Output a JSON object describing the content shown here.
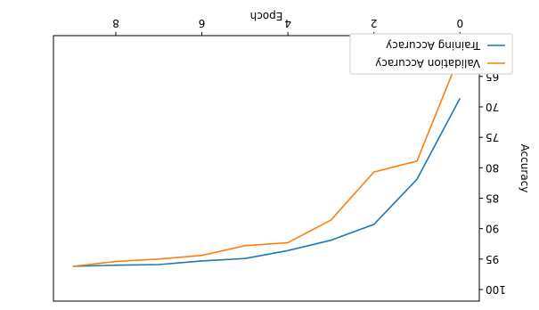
{
  "chart_data": {
    "type": "line",
    "orientation": "rotated-180",
    "xlabel": "Epoch",
    "ylabel": "Accuracy",
    "xlim": [
      -0.45,
      9.45
    ],
    "ylim": [
      58.3,
      101.9
    ],
    "x_ticks": [
      0,
      2,
      4,
      6,
      8
    ],
    "y_ticks": [
      60,
      65,
      70,
      75,
      80,
      85,
      90,
      95,
      100
    ],
    "x": [
      0,
      1,
      2,
      3,
      4,
      5,
      6,
      7,
      8,
      9
    ],
    "series": [
      {
        "name": "Training Accuracy",
        "color": "#1f77b4",
        "values": [
          68.6,
          81.9,
          89.3,
          91.9,
          93.6,
          94.9,
          95.3,
          95.9,
          96.0,
          96.2
        ]
      },
      {
        "name": "Validation Accuracy",
        "color": "#ff7f0e",
        "values": [
          61.4,
          78.9,
          80.7,
          88.6,
          92.3,
          92.8,
          94.4,
          95.0,
          95.4,
          96.2
        ]
      }
    ],
    "legend": {
      "location": "top-right",
      "entries": [
        "Validation Accuracy",
        "Training Accuracy"
      ]
    },
    "grid": false
  }
}
